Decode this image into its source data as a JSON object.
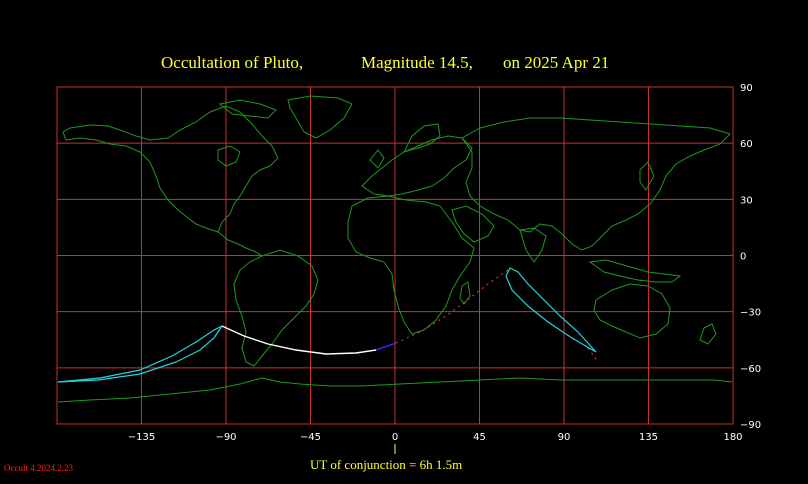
{
  "title": {
    "part1": "Occultation  of  Pluto,",
    "part2": "Magnitude 14.5,",
    "part3": "on  2025 Apr 21"
  },
  "map": {
    "lon_range": [
      -180,
      180
    ],
    "lat_range": [
      -90,
      90
    ],
    "lon_ticks": [
      "−135",
      "−90",
      "−45",
      "0",
      "45",
      "90",
      "135",
      "180"
    ],
    "lat_ticks": [
      "90",
      "60",
      "30",
      "0",
      "−30",
      "−60",
      "−90"
    ],
    "grid_color": "#c83232",
    "coast_color": "#1e9a1e",
    "centre_line_color": "#ffffff",
    "limit_color": "#28d2dc"
  },
  "footer": {
    "conjunction": "UT of conjunction =  6h  1.5m",
    "version": "Occult 4.2024.2.23"
  }
}
